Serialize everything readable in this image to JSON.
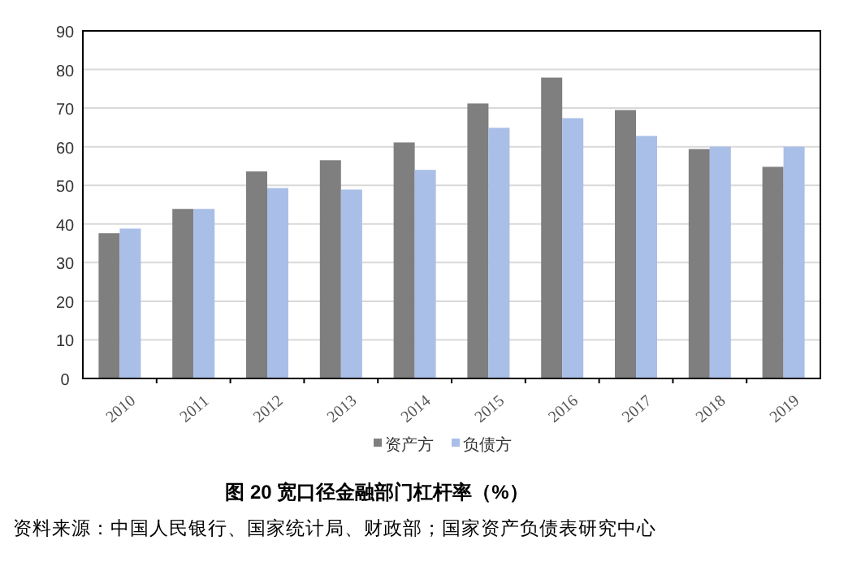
{
  "chart_data": {
    "type": "bar",
    "title": "图 20  宽口径金融部门杠杆率（%）",
    "annotations": [
      "资料来源：中国人民银行、国家统计局、财政部；国家资产负债表研究中心"
    ],
    "categories": [
      "2010",
      "2011",
      "2012",
      "2013",
      "2014",
      "2015",
      "2016",
      "2017",
      "2018",
      "2019"
    ],
    "series": [
      {
        "name": "资产方",
        "color": "#7f7f7f",
        "values": [
          37.6,
          43.9,
          53.6,
          56.5,
          61.1,
          71.2,
          77.9,
          69.5,
          59.4,
          54.8
        ]
      },
      {
        "name": "负债方",
        "color": "#a9bfe8",
        "values": [
          38.8,
          43.9,
          49.3,
          48.9,
          54.0,
          64.9,
          67.4,
          62.8,
          60.0,
          60.0
        ]
      }
    ],
    "ylim": [
      0,
      90
    ],
    "yticks": [
      0,
      10,
      20,
      30,
      40,
      50,
      60,
      70,
      80,
      90
    ],
    "grid": "y",
    "legend": "bottom"
  }
}
